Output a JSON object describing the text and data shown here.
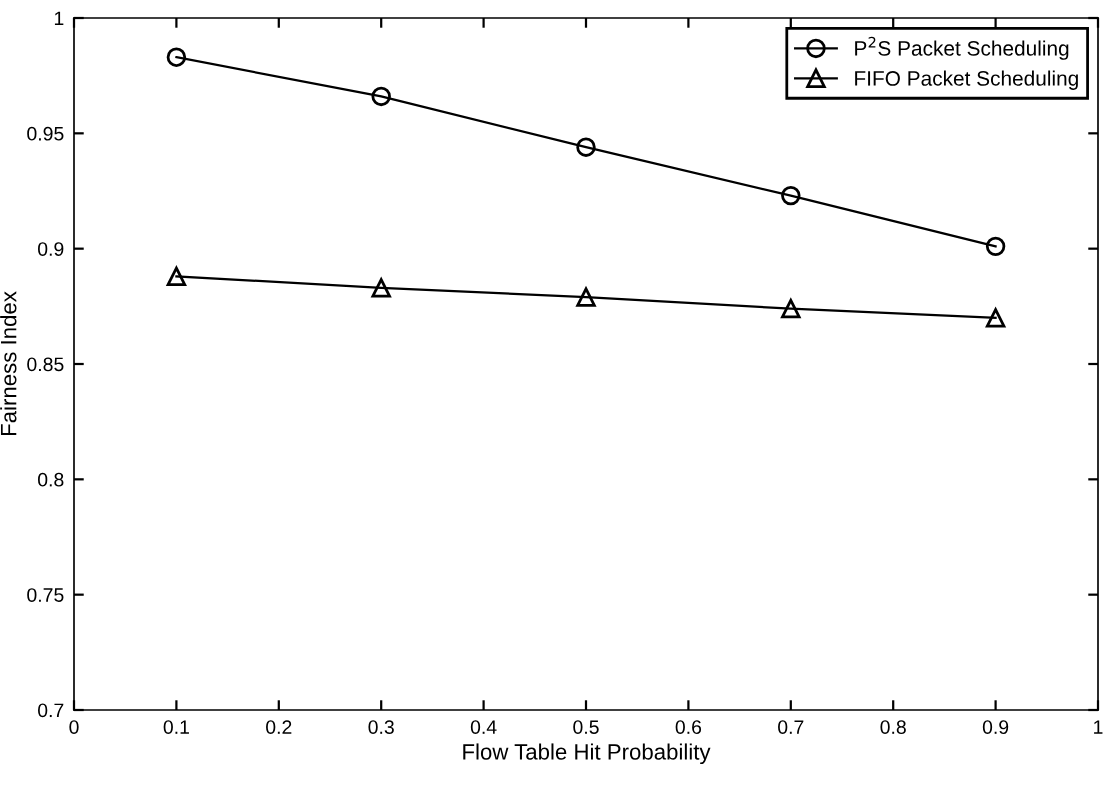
{
  "chart_data": {
    "type": "line",
    "xlabel": "Flow Table Hit Probability",
    "ylabel": "Fairness Index",
    "x": [
      0.1,
      0.3,
      0.5,
      0.7,
      0.9
    ],
    "series": [
      {
        "name": "P$^{2}$S Packet Scheduling",
        "color": "#000000",
        "marker": "circle",
        "values": [
          0.983,
          0.966,
          0.944,
          0.923,
          0.901
        ]
      },
      {
        "name": "FIFO Packet Scheduling",
        "color": "#000000",
        "marker": "triangle",
        "values": [
          0.888,
          0.883,
          0.879,
          0.874,
          0.87
        ]
      }
    ],
    "xlim": [
      0,
      1
    ],
    "xticks": [
      0,
      0.1,
      0.2,
      0.3,
      0.4,
      0.5,
      0.6,
      0.7,
      0.8,
      0.9,
      1
    ],
    "ylim": [
      0.7,
      1
    ],
    "yticks": [
      0.7,
      0.75,
      0.8,
      0.85,
      0.9,
      0.95,
      1
    ],
    "grid": false,
    "legend": "top right",
    "line_style": "solid"
  }
}
